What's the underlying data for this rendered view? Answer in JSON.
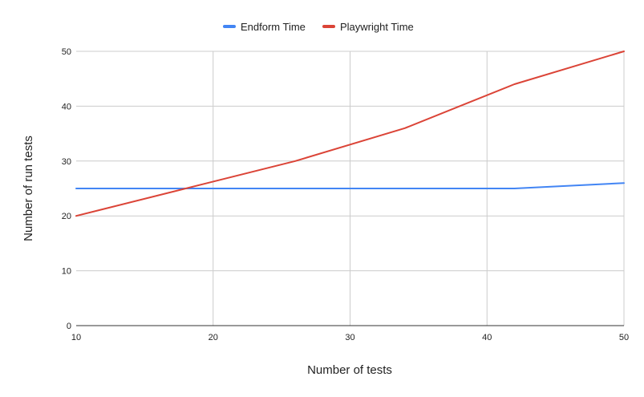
{
  "chart_data": {
    "type": "line",
    "title": "",
    "xlabel": "Number of tests",
    "ylabel": "Number of run tests",
    "xlim": [
      10,
      50
    ],
    "ylim": [
      0,
      50
    ],
    "x_ticks": [
      "10",
      "20",
      "30",
      "40",
      "50"
    ],
    "y_ticks": [
      "0",
      "10",
      "20",
      "30",
      "40",
      "50"
    ],
    "grid": true,
    "legend_position": "top-center",
    "series": [
      {
        "name": "Endform Time",
        "color": "#4285F4",
        "x": [
          10,
          18,
          26,
          34,
          42,
          50
        ],
        "y": [
          25,
          25,
          25,
          25,
          25,
          26
        ]
      },
      {
        "name": "Playwright Time",
        "color": "#DB4437",
        "x": [
          10,
          18,
          26,
          34,
          42,
          50
        ],
        "y": [
          20,
          25,
          30,
          36,
          44,
          50
        ]
      }
    ]
  }
}
